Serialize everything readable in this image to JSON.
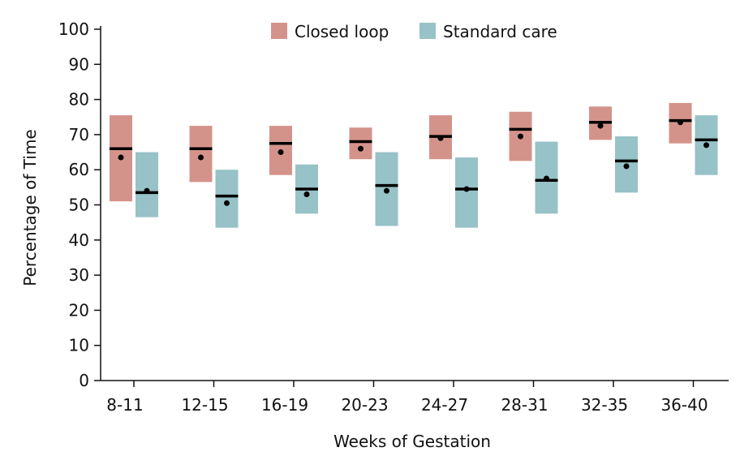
{
  "chart_data": {
    "type": "box",
    "xlabel": "Weeks of Gestation",
    "ylabel": "Percentage of Time",
    "ylim": [
      0,
      100
    ],
    "yticks": [
      0,
      10,
      20,
      30,
      40,
      50,
      60,
      70,
      80,
      90,
      100
    ],
    "categories": [
      "8-11",
      "12-15",
      "16-19",
      "20-23",
      "24-27",
      "28-31",
      "32-35",
      "36-40"
    ],
    "legend_position": "top",
    "grid": false,
    "series": [
      {
        "name": "Closed loop",
        "color": "#d4938a",
        "q1": [
          51,
          56.5,
          58.5,
          63,
          63,
          62.5,
          68.5,
          67.5
        ],
        "q3": [
          75.5,
          72.5,
          72.5,
          72,
          75.5,
          76.5,
          78,
          79
        ],
        "median": [
          66,
          66,
          67.5,
          68,
          69.5,
          71.5,
          73.5,
          74
        ],
        "mean": [
          63.5,
          63.5,
          65,
          66,
          69,
          69.5,
          72.5,
          73.5
        ]
      },
      {
        "name": "Standard care",
        "color": "#97c2c7",
        "q1": [
          46.5,
          43.5,
          47.5,
          44,
          43.5,
          47.5,
          53.5,
          58.5
        ],
        "q3": [
          65,
          60,
          61.5,
          65,
          63.5,
          68,
          69.5,
          75.5
        ],
        "median": [
          53.5,
          52.5,
          54.5,
          55.5,
          54.5,
          57,
          62.5,
          68.5
        ],
        "mean": [
          54,
          50.5,
          53,
          54,
          54.5,
          57.5,
          61,
          67
        ]
      }
    ]
  }
}
